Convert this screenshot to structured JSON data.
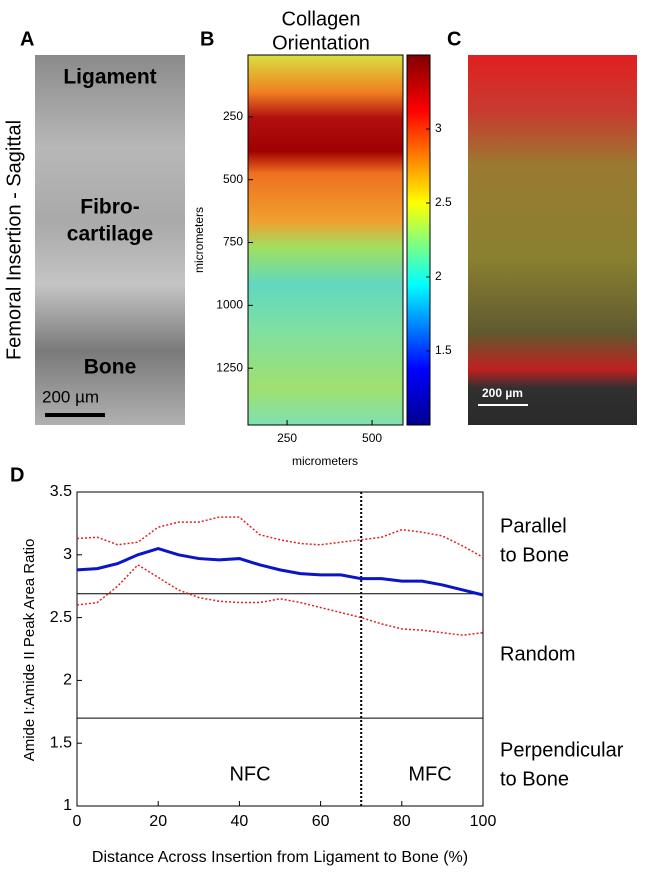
{
  "panels": {
    "a": {
      "label": "A",
      "side_label": "Femoral Insertion - Sagittal",
      "regions": [
        "Ligament",
        "Fibro-",
        "cartilage",
        "Bone"
      ],
      "scale_bar": "200 µm"
    },
    "b": {
      "label": "B",
      "title": [
        "Collagen",
        "Orientation"
      ],
      "xlabel": "micrometers",
      "ylabel": "micrometers",
      "xlim": [
        135,
        591
      ],
      "xticks": [
        250,
        500
      ],
      "ylim": [
        4,
        1476
      ],
      "yticks": [
        250,
        500,
        750,
        1000,
        1250
      ],
      "clim": [
        1,
        3.5
      ],
      "cticks": [
        1.5,
        2,
        2.5,
        3
      ]
    },
    "c": {
      "label": "C",
      "scale_bar": "200 µm"
    }
  },
  "chart_data": {
    "type": "line",
    "label": "D",
    "xlabel": "Distance Across Insertion from Ligament to Bone (%)",
    "ylabel": "Amide I:Amide II Peak Area Ratio",
    "x": [
      0,
      5,
      10,
      15,
      20,
      25,
      30,
      35,
      40,
      45,
      50,
      55,
      60,
      65,
      70,
      75,
      80,
      85,
      90,
      95,
      100
    ],
    "series": [
      {
        "color": "#0a14c8",
        "values": [
          2.88,
          2.89,
          2.93,
          3.0,
          3.05,
          3.0,
          2.97,
          2.96,
          2.97,
          2.92,
          2.88,
          2.85,
          2.84,
          2.84,
          2.81,
          2.81,
          2.79,
          2.79,
          2.76,
          2.72,
          2.68
        ]
      },
      {
        "color": "#e02020",
        "values": [
          3.13,
          3.14,
          3.08,
          3.1,
          3.22,
          3.26,
          3.26,
          3.3,
          3.3,
          3.16,
          3.12,
          3.09,
          3.08,
          3.1,
          3.12,
          3.14,
          3.2,
          3.18,
          3.15,
          3.07,
          2.98
        ]
      },
      {
        "color": "#e02020",
        "values": [
          2.6,
          2.62,
          2.75,
          2.92,
          2.82,
          2.72,
          2.66,
          2.63,
          2.62,
          2.62,
          2.65,
          2.62,
          2.58,
          2.54,
          2.5,
          2.45,
          2.41,
          2.4,
          2.38,
          2.36,
          2.38
        ]
      }
    ],
    "hlines": [
      2.69,
      1.7
    ],
    "vline": 70,
    "annotations": [
      "Parallel",
      "to Bone",
      "Random",
      "Perpendicular",
      "to Bone",
      "NFC",
      "MFC"
    ],
    "xlim": [
      0,
      100
    ],
    "xticks": [
      0,
      20,
      40,
      60,
      80,
      100
    ],
    "ylim": [
      1,
      3.5
    ],
    "yticks": [
      1,
      1.5,
      2,
      2.5,
      3,
      3.5
    ]
  }
}
